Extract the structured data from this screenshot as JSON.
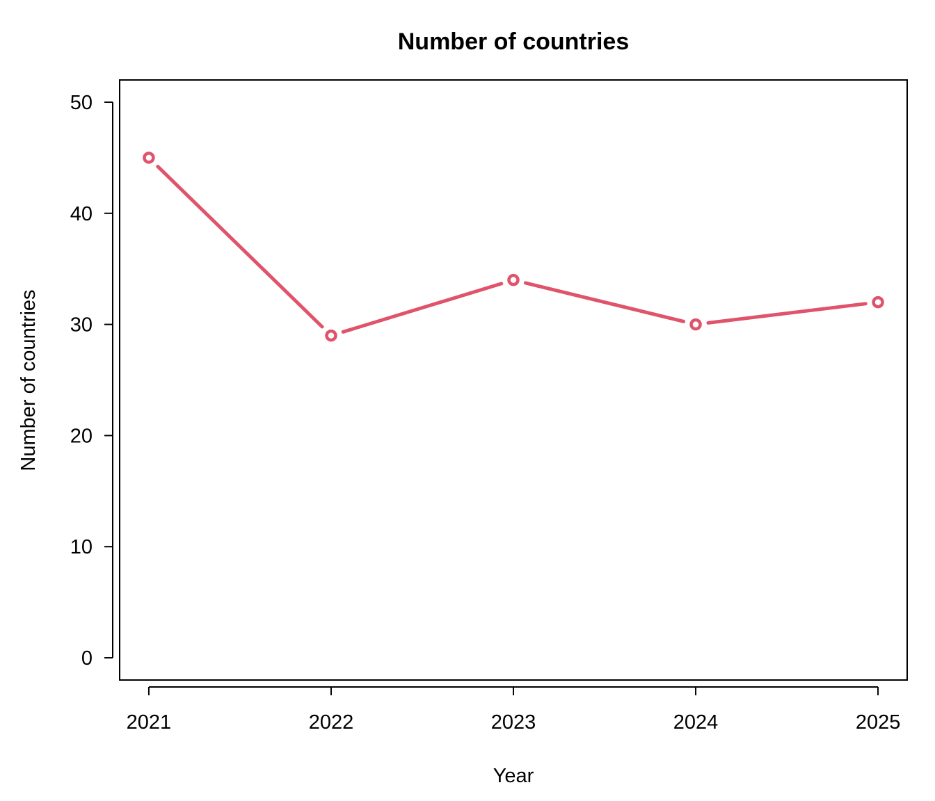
{
  "chart_data": {
    "type": "line",
    "title": "Number of countries",
    "xlabel": "Year",
    "ylabel": "Number of countries",
    "x": [
      2021,
      2022,
      2023,
      2024,
      2025
    ],
    "series": [
      {
        "values": [
          45,
          29,
          34,
          30,
          32
        ]
      }
    ],
    "xticks": [
      "2021",
      "2022",
      "2023",
      "2024",
      "2025"
    ],
    "yticks": [
      0,
      10,
      20,
      30,
      40,
      50
    ],
    "ylim": [
      -2,
      52
    ],
    "xlim": [
      2020.84,
      2025.16
    ],
    "grid": false,
    "marker": "open-circle",
    "line_color": "#DF536B"
  }
}
